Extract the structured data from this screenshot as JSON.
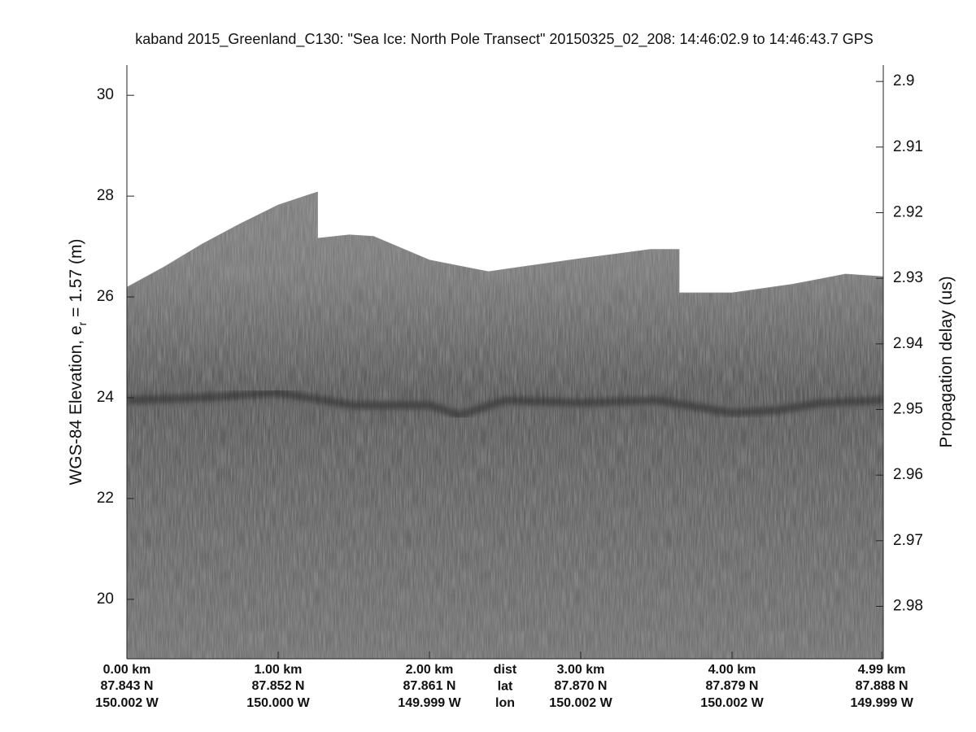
{
  "chart_data": {
    "type": "echogram",
    "title": "kaband 2015_Greenland_C130: \"Sea Ice: North Pole Transect\"  20150325_02_208: 14:46:02.9 to 14:46:43.7 GPS",
    "y_label": {
      "before": "WGS-84 Elevation, e",
      "sub": "r",
      "after": " = 1.57 (m)"
    },
    "y2_label": "Propagation delay (us)",
    "xlim": [
      0,
      5.0
    ],
    "xticks": [
      {
        "value": 0,
        "label": "0.00 km"
      },
      {
        "value": 1,
        "label": "1.00 km"
      },
      {
        "value": 2,
        "label": "2.00 km"
      },
      {
        "value": 3,
        "label": "3.00 km"
      },
      {
        "value": 4,
        "label": "4.00 km"
      },
      {
        "value": 4.99,
        "label": "4.99 km"
      }
    ],
    "lat_labels": [
      "87.843 N",
      "87.852 N",
      "87.861 N",
      "87.870 N",
      "87.879 N",
      "87.888 N"
    ],
    "lon_labels": [
      "150.002 W",
      "150.000 W",
      "149.999 W",
      "150.002 W",
      "150.002 W",
      "149.999 W"
    ],
    "row_labels": {
      "value": 2.5,
      "labels": [
        "dist",
        "lat",
        "lon"
      ]
    },
    "ylim": [
      18.82,
      30.6
    ],
    "yticks": [
      20,
      22,
      24,
      26,
      28,
      30
    ],
    "y2lim": [
      2.988,
      2.8975
    ],
    "y2ticks": [
      2.9,
      2.91,
      2.92,
      2.93,
      2.94,
      2.95,
      2.96,
      2.97,
      2.98
    ],
    "surface": {
      "x": [
        0,
        0.25,
        0.5,
        0.75,
        1.0,
        1.26,
        1.26,
        1.47,
        1.63,
        2.0,
        2.39,
        3.0,
        3.46,
        3.65,
        3.65,
        4.0,
        4.4,
        4.75,
        5.0
      ],
      "values": [
        26.19,
        26.6,
        27.05,
        27.45,
        27.82,
        28.08,
        27.16,
        27.23,
        27.2,
        26.73,
        26.5,
        26.76,
        26.94,
        26.94,
        26.08,
        26.08,
        26.25,
        26.45,
        26.4
      ]
    },
    "layer": {
      "x": [
        0,
        0.5,
        1.0,
        1.5,
        2.0,
        2.2,
        2.5,
        3.0,
        3.5,
        4.0,
        4.3,
        4.6,
        5.0
      ],
      "values": [
        23.95,
        24.0,
        24.1,
        23.85,
        23.85,
        23.65,
        23.95,
        23.9,
        23.95,
        23.7,
        23.75,
        23.9,
        23.95
      ]
    },
    "color": "#7a7a7a",
    "layer_color": "#2e2e2e"
  }
}
